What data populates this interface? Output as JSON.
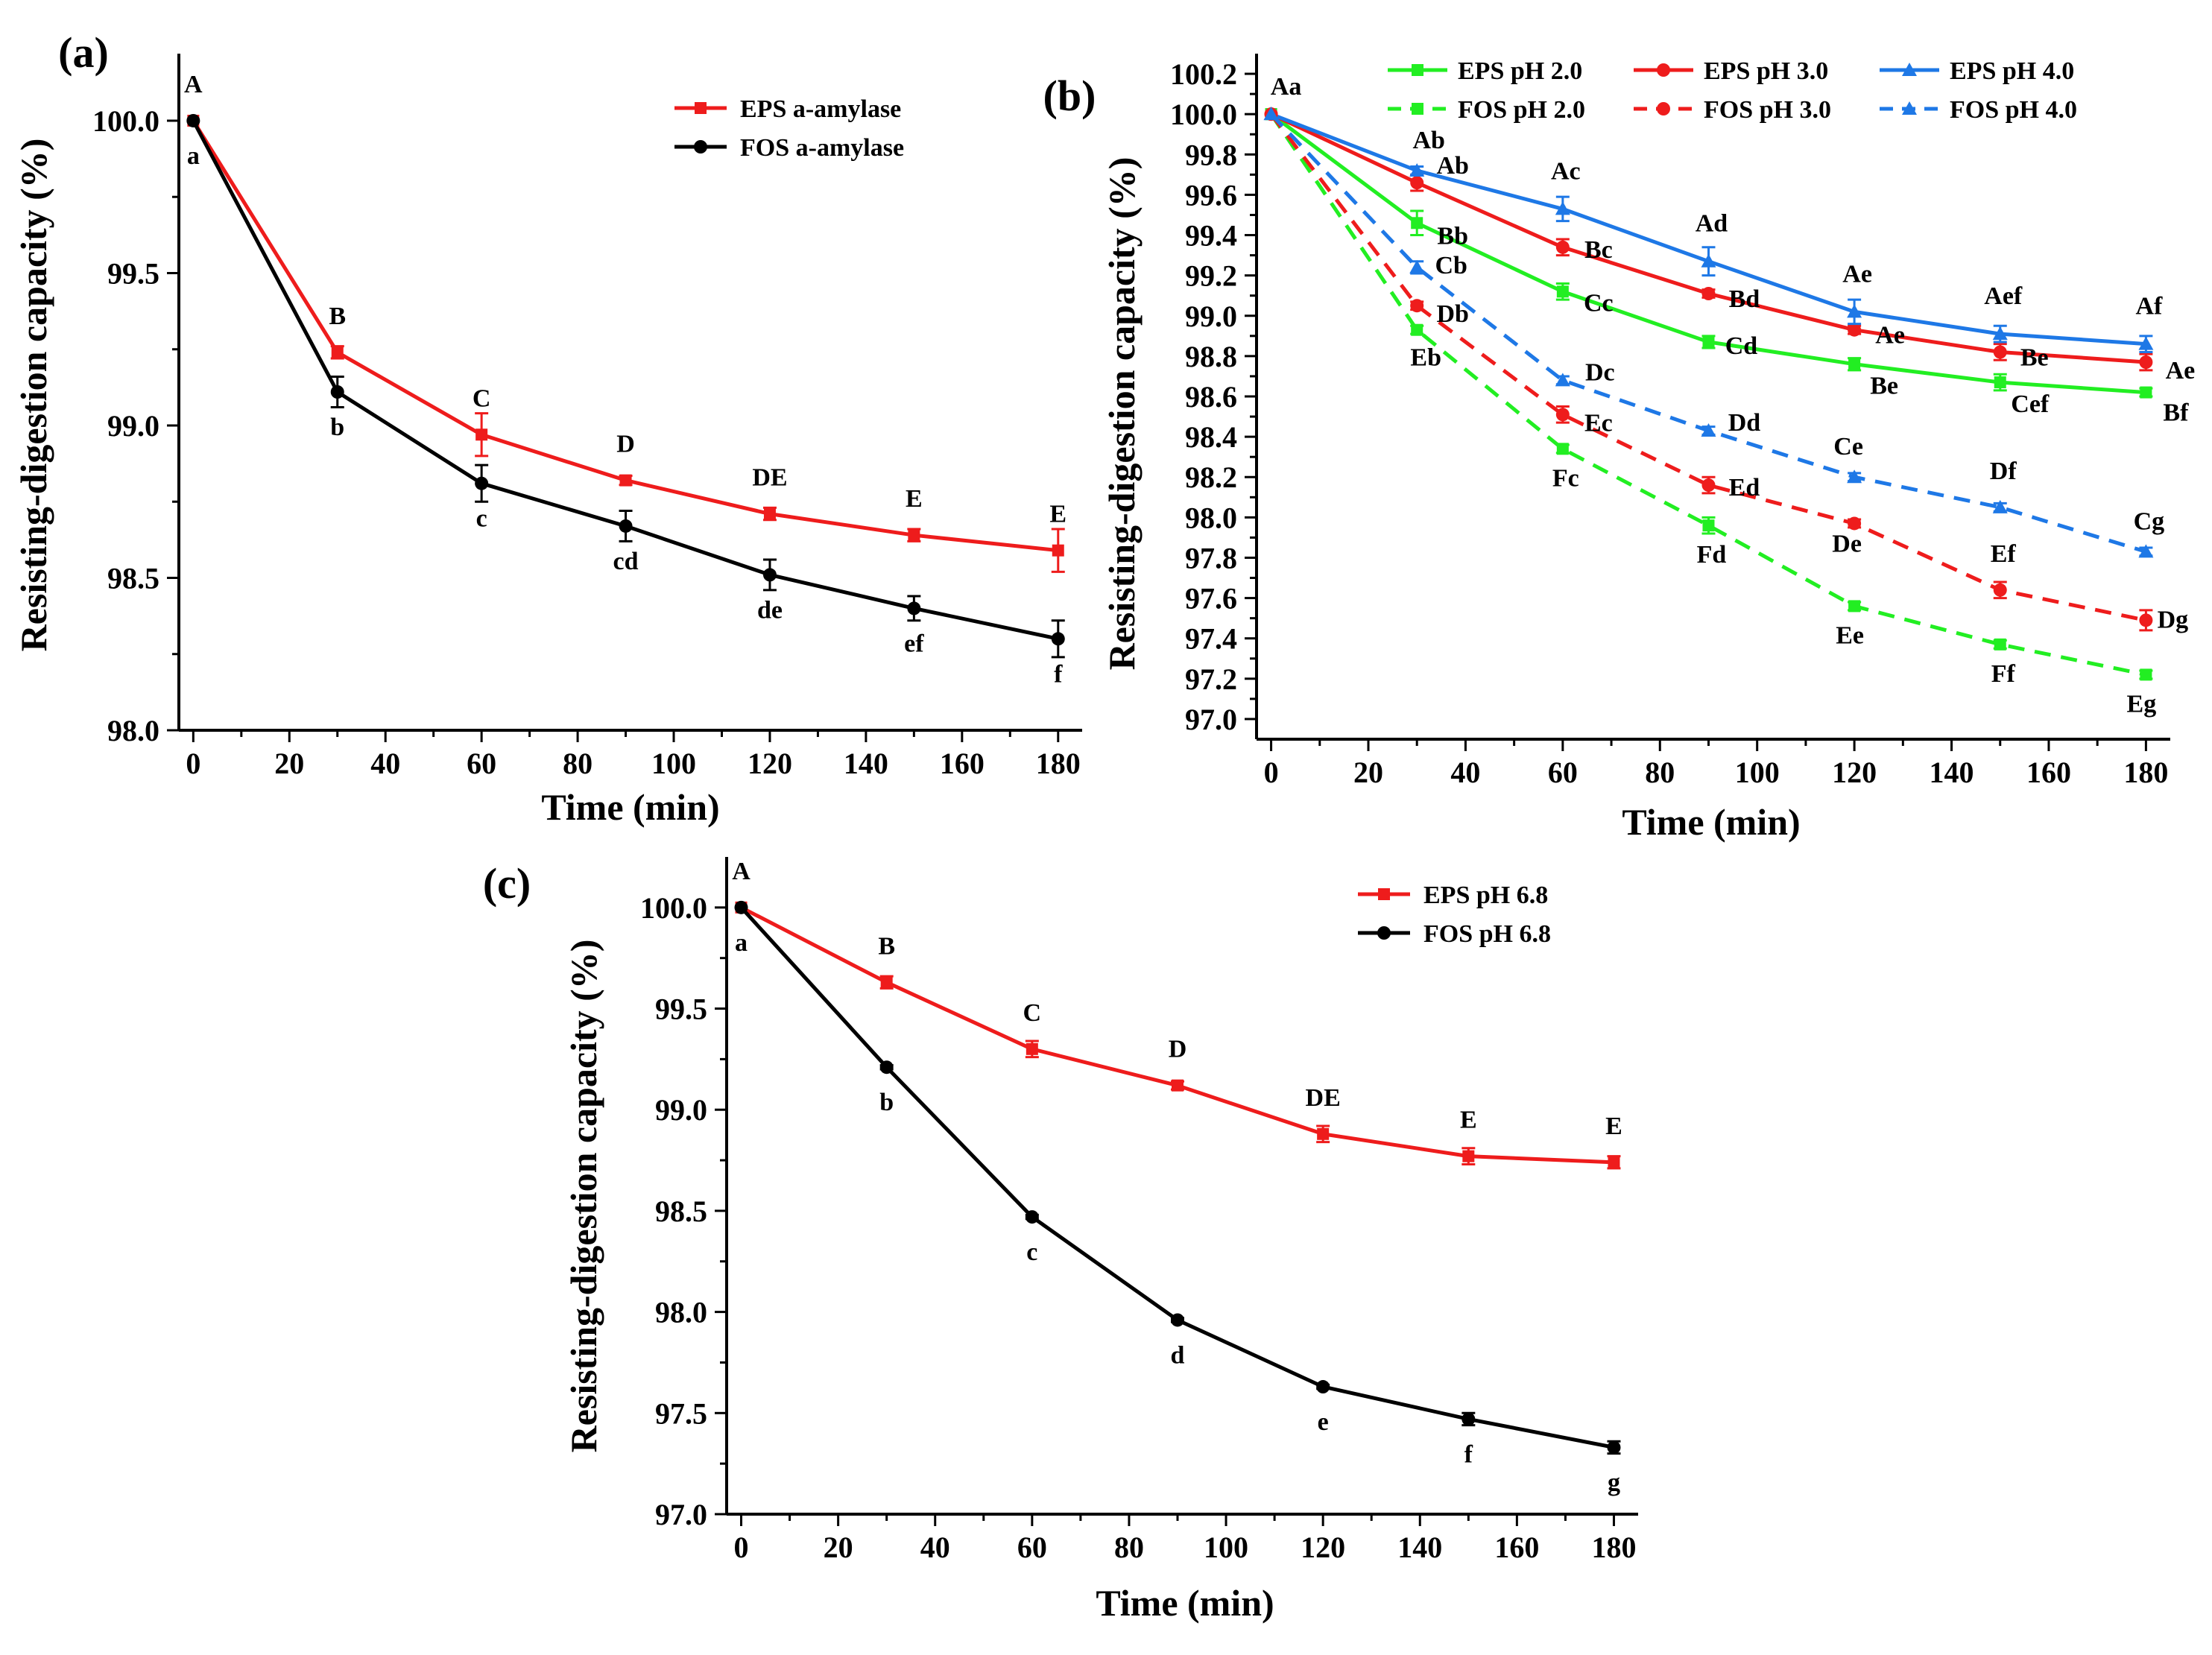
{
  "chart_data": [
    {
      "panel": "(a)",
      "type": "line",
      "xlabel": "Time (min)",
      "ylabel": "Resisting-digestion capacity (%)",
      "x": [
        0,
        30,
        60,
        90,
        120,
        150,
        180
      ],
      "xlim": [
        -3,
        185
      ],
      "ylim": [
        98.0,
        100.22
      ],
      "xticks": [
        0,
        20,
        40,
        60,
        80,
        100,
        120,
        140,
        160,
        180
      ],
      "yticks": [
        98.0,
        98.5,
        99.0,
        99.5,
        100.0
      ],
      "legend_position": "top-right",
      "series": [
        {
          "name": "EPS a-amylase",
          "color": "#ee1c1c",
          "marker": "square",
          "dash": "solid",
          "label_pos": "above",
          "values": [
            100.0,
            99.24,
            98.97,
            98.82,
            98.71,
            98.64,
            98.59
          ],
          "errors": [
            0,
            0.02,
            0.07,
            0.015,
            0.02,
            0.02,
            0.07
          ],
          "labels": [
            "A",
            "B",
            "C",
            "D",
            "DE",
            "E",
            "E"
          ]
        },
        {
          "name": "FOS a-amylase",
          "color": "#000000",
          "marker": "circle",
          "dash": "solid",
          "label_pos": "below",
          "values": [
            100.0,
            99.11,
            98.81,
            98.67,
            98.51,
            98.4,
            98.3
          ],
          "errors": [
            0,
            0.05,
            0.06,
            0.05,
            0.05,
            0.04,
            0.06
          ],
          "labels": [
            "a",
            "b",
            "c",
            "cd",
            "de",
            "ef",
            "f"
          ]
        }
      ]
    },
    {
      "panel": "(b)",
      "type": "line",
      "xlabel": "Time (min)",
      "ylabel": "Resisting-digestion capacity (%)",
      "x": [
        0,
        30,
        60,
        90,
        120,
        150,
        180
      ],
      "xlim": [
        -3,
        185
      ],
      "ylim": [
        96.9,
        100.3
      ],
      "xticks": [
        0,
        20,
        40,
        60,
        80,
        100,
        120,
        140,
        160,
        180
      ],
      "yticks": [
        97.0,
        97.2,
        97.4,
        97.6,
        97.8,
        98.0,
        98.2,
        98.4,
        98.6,
        98.8,
        99.0,
        99.2,
        99.4,
        99.6,
        99.8,
        100.0,
        100.2
      ],
      "legend_position": "top",
      "origin_label": "Aa",
      "series": [
        {
          "name": "EPS pH 2.0",
          "color": "#22ee22",
          "marker": "square",
          "dash": "solid",
          "values": [
            100.0,
            99.46,
            99.12,
            98.87,
            98.76,
            98.67,
            98.62
          ],
          "errors": [
            0,
            0.06,
            0.04,
            0.03,
            0.03,
            0.04,
            0.02
          ],
          "labels": [
            "",
            "Bb",
            "Cc",
            "Cd",
            "Be",
            "Cef",
            "Bf"
          ]
        },
        {
          "name": "EPS pH 3.0",
          "color": "#ee1c1c",
          "marker": "circle",
          "dash": "solid",
          "values": [
            100.0,
            99.66,
            99.34,
            99.11,
            98.93,
            98.82,
            98.77
          ],
          "errors": [
            0,
            0.04,
            0.04,
            0.02,
            0.02,
            0.04,
            0.04
          ],
          "labels": [
            "",
            "Ab",
            "Bc",
            "Bd",
            "Ae",
            "Be",
            "Ae"
          ]
        },
        {
          "name": "EPS pH 4.0",
          "color": "#1e78e6",
          "marker": "triangle",
          "dash": "solid",
          "values": [
            100.0,
            99.72,
            99.53,
            99.27,
            99.02,
            98.91,
            98.86
          ],
          "errors": [
            0,
            0.02,
            0.06,
            0.07,
            0.06,
            0.04,
            0.04
          ],
          "labels": [
            "",
            "Ab",
            "Ac",
            "Ad",
            "Ae",
            "Aef",
            "Af"
          ]
        },
        {
          "name": "FOS pH 2.0",
          "color": "#22ee22",
          "marker": "square",
          "dash": "dashed",
          "values": [
            100.0,
            98.93,
            98.34,
            97.96,
            97.56,
            97.37,
            97.22
          ],
          "errors": [
            0,
            0.02,
            0.02,
            0.04,
            0.02,
            0.02,
            0.02
          ],
          "labels": [
            "",
            "Eb",
            "Fc",
            "Fd",
            "Ee",
            "Ff",
            "Eg"
          ]
        },
        {
          "name": "FOS pH 3.0",
          "color": "#ee1c1c",
          "marker": "circle",
          "dash": "dashed",
          "values": [
            100.0,
            99.05,
            98.51,
            98.16,
            97.97,
            97.64,
            97.49
          ],
          "errors": [
            0,
            0.02,
            0.04,
            0.04,
            0.02,
            0.04,
            0.05
          ],
          "labels": [
            "",
            "Db",
            "Ec",
            "Ed",
            "De",
            "Ef",
            "Dg"
          ]
        },
        {
          "name": "FOS pH 4.0",
          "color": "#1e78e6",
          "marker": "triangle",
          "dash": "dashed",
          "values": [
            100.0,
            99.24,
            98.68,
            98.43,
            98.2,
            98.05,
            97.83
          ],
          "errors": [
            0,
            0.03,
            0.02,
            0.02,
            0.02,
            0.02,
            0.02
          ],
          "labels": [
            "",
            "Cb",
            "Dc",
            "Dd",
            "Ce",
            "Df",
            "Cg"
          ]
        }
      ]
    },
    {
      "panel": "(c)",
      "type": "line",
      "xlabel": "Time (min)",
      "ylabel": "Resisting-digestion capacity (%)",
      "x": [
        0,
        30,
        60,
        90,
        120,
        150,
        180
      ],
      "xlim": [
        -3,
        185
      ],
      "ylim": [
        97.0,
        100.25
      ],
      "xticks": [
        0,
        20,
        40,
        60,
        80,
        100,
        120,
        140,
        160,
        180
      ],
      "yticks": [
        97.0,
        97.5,
        98.0,
        98.5,
        99.0,
        99.5,
        100.0
      ],
      "legend_position": "top-right",
      "series": [
        {
          "name": "EPS pH 6.8",
          "color": "#ee1c1c",
          "marker": "square",
          "dash": "solid",
          "label_pos": "above",
          "values": [
            100.0,
            99.63,
            99.3,
            99.12,
            98.88,
            98.77,
            98.74
          ],
          "errors": [
            0,
            0.03,
            0.04,
            0.02,
            0.04,
            0.04,
            0.03
          ],
          "labels": [
            "A",
            "B",
            "C",
            "D",
            "DE",
            "E",
            "E"
          ]
        },
        {
          "name": "FOS pH 6.8",
          "color": "#000000",
          "marker": "circle",
          "dash": "solid",
          "label_pos": "below",
          "values": [
            100.0,
            99.21,
            98.47,
            97.96,
            97.63,
            97.47,
            97.33
          ],
          "errors": [
            0,
            0.01,
            0.01,
            0.01,
            0.01,
            0.03,
            0.03
          ],
          "labels": [
            "a",
            "b",
            "c",
            "d",
            "e",
            "f",
            "g"
          ]
        }
      ]
    }
  ]
}
